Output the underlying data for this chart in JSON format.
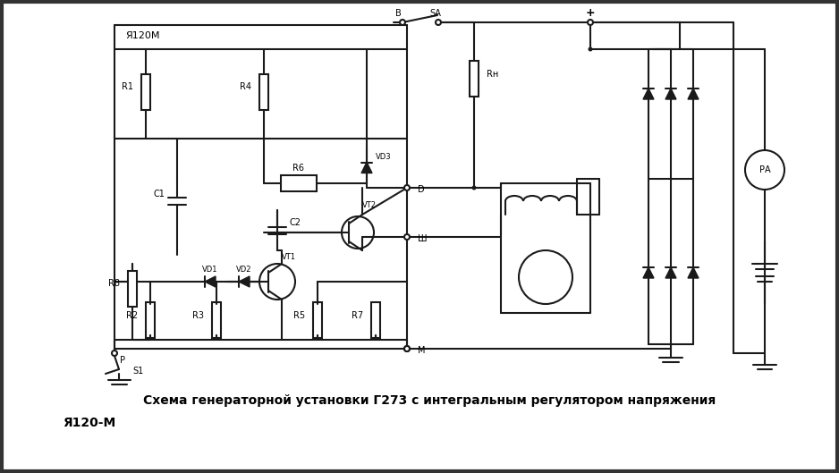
{
  "bg_color": "#3a3a3a",
  "circuit_bg": "#ffffff",
  "line_color": "#1a1a1a",
  "text_color": "#000000",
  "caption_line1": "Схема генераторной установки Г273 с интегральным регулятором напряжения",
  "caption_line2": "Я120-М",
  "label_ya120m": "Я120М",
  "fig_width": 9.38,
  "fig_height": 5.29,
  "dpi": 100
}
